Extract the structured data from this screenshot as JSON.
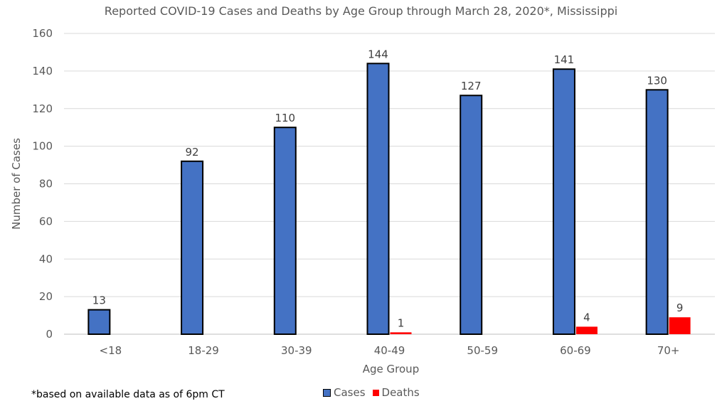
{
  "chart_data": {
    "type": "bar",
    "title": "Reported COVID-19 Cases and Deaths by Age Group through March 28, 2020*, Mississippi",
    "xlabel": "Age Group",
    "ylabel": "Number of Cases",
    "ylim": [
      0,
      160
    ],
    "yticks": [
      "0",
      "20",
      "40",
      "60",
      "80",
      "100",
      "120",
      "140",
      "160"
    ],
    "grid": true,
    "legend_position": "bottom",
    "categories": [
      "<18",
      "18-29",
      "30-39",
      "40-49",
      "50-59",
      "60-69",
      "70+"
    ],
    "series": [
      {
        "name": "Cases",
        "color": "#4472C4",
        "values": [
          13,
          92,
          110,
          144,
          127,
          141,
          130
        ],
        "labels": [
          "13",
          "92",
          "110",
          "144",
          "127",
          "141",
          "130"
        ]
      },
      {
        "name": "Deaths",
        "color": "#FF0000",
        "values": [
          0,
          0,
          0,
          1,
          0,
          4,
          9
        ],
        "labels": [
          "",
          "",
          "",
          "1",
          "",
          "4",
          "9"
        ]
      }
    ]
  },
  "footnote": "*based on available data as of 6pm CT"
}
